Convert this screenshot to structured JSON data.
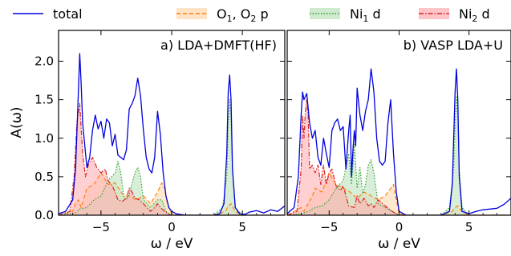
{
  "chart_data": [
    {
      "type": "area",
      "panel_id": "a",
      "title": "a) LDA+DMFT(HF)",
      "xlabel": "ω / eV",
      "ylabel": "A(ω)",
      "xlim": [
        -8,
        8
      ],
      "ylim": [
        0,
        2.4
      ],
      "xticks": [
        -5,
        0,
        5
      ],
      "yticks": [
        0.0,
        0.5,
        1.0,
        1.5,
        2.0
      ],
      "series": [
        {
          "name": "total",
          "style": "solid",
          "color": "#0000dd",
          "filled": false,
          "x": [
            -8.0,
            -7.5,
            -7.0,
            -6.8,
            -6.6,
            -6.5,
            -6.4,
            -6.3,
            -6.0,
            -5.8,
            -5.6,
            -5.4,
            -5.2,
            -5.0,
            -4.8,
            -4.6,
            -4.4,
            -4.2,
            -4.0,
            -3.8,
            -3.6,
            -3.4,
            -3.2,
            -3.0,
            -2.8,
            -2.6,
            -2.4,
            -2.2,
            -2.0,
            -1.8,
            -1.6,
            -1.4,
            -1.2,
            -1.0,
            -0.8,
            -0.6,
            -0.4,
            -0.2,
            0.0,
            0.3,
            0.6,
            1.0,
            2.0,
            3.0,
            3.4,
            3.7,
            3.9,
            4.0,
            4.1,
            4.2,
            4.3,
            4.5,
            4.8,
            5.2,
            5.5,
            6.0,
            6.5,
            7.0,
            7.5,
            8.0
          ],
          "y": [
            0.02,
            0.05,
            0.2,
            0.6,
            1.6,
            2.1,
            1.7,
            1.2,
            0.62,
            0.75,
            1.1,
            1.3,
            1.12,
            1.22,
            1.0,
            1.25,
            1.2,
            0.9,
            1.05,
            0.78,
            0.75,
            0.72,
            0.85,
            1.38,
            1.45,
            1.55,
            1.78,
            1.55,
            1.1,
            0.75,
            0.6,
            0.55,
            0.75,
            1.35,
            1.05,
            0.55,
            0.25,
            0.1,
            0.05,
            0.02,
            0.01,
            0.0,
            0.0,
            0.0,
            0.02,
            0.15,
            0.8,
            1.6,
            1.82,
            1.5,
            0.6,
            0.1,
            0.02,
            0.01,
            0.04,
            0.06,
            0.03,
            0.07,
            0.05,
            0.12
          ]
        },
        {
          "name": "O1, O2 p",
          "style": "dashed",
          "color": "#ff7f0e",
          "filled": true,
          "x": [
            -8.0,
            -7.0,
            -6.8,
            -6.6,
            -6.4,
            -6.2,
            -6.0,
            -5.5,
            -5.0,
            -4.5,
            -4.0,
            -3.5,
            -3.0,
            -2.5,
            -2.0,
            -1.5,
            -1.0,
            -0.7,
            -0.5,
            -0.3,
            0.0,
            0.5,
            3.0,
            3.8,
            4.0,
            4.2,
            4.5,
            5.0,
            8.0
          ],
          "y": [
            0.0,
            0.05,
            0.15,
            0.2,
            0.1,
            0.22,
            0.35,
            0.4,
            0.55,
            0.4,
            0.42,
            0.28,
            0.25,
            0.2,
            0.25,
            0.15,
            0.3,
            0.42,
            0.35,
            0.15,
            0.02,
            0.0,
            0.0,
            0.05,
            0.12,
            0.15,
            0.05,
            0.0,
            0.0
          ]
        },
        {
          "name": "Ni1 d",
          "style": "dotted",
          "color": "#2ca02c",
          "filled": true,
          "x": [
            -8.0,
            -6.8,
            -6.5,
            -6.0,
            -5.5,
            -5.0,
            -4.5,
            -4.0,
            -3.8,
            -3.6,
            -3.4,
            -3.2,
            -3.0,
            -2.6,
            -2.4,
            -2.2,
            -2.0,
            -1.5,
            -1.0,
            -0.7,
            -0.4,
            0.0,
            3.0,
            3.6,
            3.9,
            4.0,
            4.1,
            4.2,
            4.3,
            4.5,
            5.0,
            8.0
          ],
          "y": [
            0.0,
            0.03,
            0.08,
            0.1,
            0.2,
            0.25,
            0.45,
            0.55,
            0.7,
            0.55,
            0.25,
            0.2,
            0.28,
            0.55,
            0.62,
            0.5,
            0.2,
            0.1,
            0.2,
            0.2,
            0.05,
            0.0,
            0.0,
            0.1,
            0.5,
            1.2,
            1.5,
            1.3,
            0.6,
            0.1,
            0.0,
            0.0
          ]
        },
        {
          "name": "Ni2 d",
          "style": "dashdot",
          "color": "#d62728",
          "filled": true,
          "x": [
            -8.0,
            -7.2,
            -6.9,
            -6.7,
            -6.5,
            -6.3,
            -6.1,
            -5.9,
            -5.6,
            -5.3,
            -5.0,
            -4.7,
            -4.5,
            -4.2,
            -4.0,
            -3.8,
            -3.5,
            -3.2,
            -3.0,
            -2.8,
            -2.6,
            -2.3,
            -2.0,
            -1.5,
            -1.2,
            -1.0,
            -0.8,
            -0.5,
            -0.2,
            0.0,
            8.0
          ],
          "y": [
            0.0,
            0.05,
            0.5,
            1.2,
            1.45,
            0.8,
            0.5,
            0.65,
            0.75,
            0.62,
            0.55,
            0.6,
            0.45,
            0.38,
            0.3,
            0.2,
            0.18,
            0.22,
            0.35,
            0.3,
            0.22,
            0.2,
            0.15,
            0.05,
            0.1,
            0.15,
            0.1,
            0.05,
            0.01,
            0.0,
            0.0
          ]
        }
      ]
    },
    {
      "type": "area",
      "panel_id": "b",
      "title": "b) VASP LDA+U",
      "xlabel": "ω / eV",
      "xlim": [
        -8,
        8
      ],
      "ylim": [
        0,
        2.4
      ],
      "xticks": [
        -5,
        0,
        5
      ],
      "series": [
        {
          "name": "total",
          "style": "solid",
          "color": "#0000dd",
          "filled": false,
          "x": [
            -8.0,
            -7.5,
            -7.2,
            -7.0,
            -6.9,
            -6.8,
            -6.6,
            -6.4,
            -6.2,
            -6.0,
            -5.8,
            -5.6,
            -5.4,
            -5.2,
            -5.0,
            -4.8,
            -4.6,
            -4.4,
            -4.2,
            -4.0,
            -3.8,
            -3.6,
            -3.5,
            -3.4,
            -3.3,
            -3.2,
            -3.1,
            -3.0,
            -2.8,
            -2.6,
            -2.4,
            -2.2,
            -2.0,
            -1.8,
            -1.6,
            -1.4,
            -1.2,
            -1.0,
            -0.8,
            -0.6,
            -0.4,
            -0.2,
            0.0,
            0.5,
            1.0,
            3.0,
            3.6,
            3.8,
            4.0,
            4.1,
            4.2,
            4.3,
            4.5,
            5.0,
            5.5,
            6.0,
            6.5,
            7.0,
            7.5,
            8.0
          ],
          "y": [
            0.02,
            0.1,
            0.5,
            1.3,
            1.6,
            1.5,
            1.58,
            1.2,
            1.0,
            1.1,
            0.75,
            0.65,
            1.0,
            0.8,
            0.62,
            1.1,
            1.2,
            1.25,
            1.1,
            1.15,
            0.6,
            1.1,
            1.3,
            0.5,
            0.85,
            1.1,
            0.9,
            1.65,
            1.3,
            1.1,
            1.35,
            1.5,
            1.9,
            1.6,
            1.0,
            0.7,
            0.65,
            0.7,
            1.2,
            1.5,
            0.8,
            0.3,
            0.05,
            0.0,
            0.0,
            0.0,
            0.05,
            0.4,
            1.6,
            1.9,
            1.5,
            0.5,
            0.05,
            0.02,
            0.05,
            0.07,
            0.08,
            0.09,
            0.14,
            0.22
          ]
        },
        {
          "name": "O1, O2 p",
          "style": "dashed",
          "color": "#ff7f0e",
          "filled": true,
          "x": [
            -8.0,
            -7.0,
            -6.8,
            -6.5,
            -6.2,
            -6.0,
            -5.5,
            -5.0,
            -4.5,
            -4.0,
            -3.5,
            -3.0,
            -2.5,
            -2.0,
            -1.5,
            -1.0,
            -0.6,
            -0.4,
            -0.2,
            0.0,
            0.5,
            3.0,
            3.8,
            4.0,
            4.2,
            4.5,
            5.0,
            8.0
          ],
          "y": [
            0.0,
            0.1,
            0.05,
            0.15,
            0.25,
            0.35,
            0.3,
            0.55,
            0.4,
            0.35,
            0.3,
            0.22,
            0.3,
            0.25,
            0.2,
            0.25,
            0.35,
            0.4,
            0.2,
            0.02,
            0.0,
            0.0,
            0.05,
            0.1,
            0.12,
            0.05,
            0.0,
            0.0
          ]
        },
        {
          "name": "Ni1 d",
          "style": "dotted",
          "color": "#2ca02c",
          "filled": true,
          "x": [
            -8.0,
            -7.0,
            -6.5,
            -6.0,
            -5.5,
            -5.0,
            -4.5,
            -4.0,
            -3.6,
            -3.4,
            -3.2,
            -3.0,
            -2.8,
            -2.6,
            -2.4,
            -2.2,
            -2.0,
            -1.8,
            -1.5,
            -1.0,
            -0.5,
            0.0,
            3.0,
            3.6,
            3.9,
            4.0,
            4.1,
            4.2,
            4.3,
            4.5,
            5.0,
            8.0
          ],
          "y": [
            0.0,
            0.02,
            0.05,
            0.1,
            0.12,
            0.2,
            0.35,
            0.45,
            0.8,
            0.4,
            0.92,
            0.35,
            0.62,
            0.28,
            0.4,
            0.65,
            0.72,
            0.55,
            0.15,
            0.1,
            0.05,
            0.0,
            0.0,
            0.1,
            0.6,
            1.2,
            1.55,
            1.3,
            0.6,
            0.1,
            0.0,
            0.0
          ]
        },
        {
          "name": "Ni2 d",
          "style": "dashdot",
          "color": "#d62728",
          "filled": true,
          "x": [
            -8.0,
            -7.3,
            -7.0,
            -6.9,
            -6.8,
            -6.7,
            -6.6,
            -6.5,
            -6.4,
            -6.2,
            -6.0,
            -5.8,
            -5.6,
            -5.4,
            -5.2,
            -5.0,
            -4.8,
            -4.5,
            -4.2,
            -4.0,
            -3.6,
            -3.2,
            -3.0,
            -2.8,
            -2.5,
            -2.2,
            -2.0,
            -1.8,
            -1.5,
            -1.0,
            -0.5,
            0.0,
            8.0
          ],
          "y": [
            0.0,
            0.05,
            0.6,
            1.3,
            1.0,
            1.35,
            1.5,
            1.3,
            0.6,
            0.65,
            0.55,
            0.65,
            0.4,
            0.65,
            0.4,
            0.55,
            0.6,
            0.38,
            0.32,
            0.38,
            0.12,
            0.1,
            0.25,
            0.15,
            0.22,
            0.12,
            0.15,
            0.1,
            0.2,
            0.12,
            0.05,
            0.0,
            0.0
          ]
        }
      ]
    }
  ],
  "legend": {
    "placement": "top",
    "entries": [
      {
        "label": "total",
        "style": "solid",
        "color": "#0000dd",
        "filled": false
      },
      {
        "label": "O",
        "sub1": "1",
        "mid": ", O",
        "sub2": "2",
        "tail": " p",
        "style": "dashed",
        "color": "#ff7f0e",
        "fill": "#ffd9b0",
        "filled": true
      },
      {
        "label": "Ni",
        "sub1": "1",
        "tail": " d",
        "style": "dotted",
        "color": "#2ca02c",
        "fill": "#bfe3bf",
        "filled": true
      },
      {
        "label": "Ni",
        "sub1": "2",
        "tail": " d",
        "style": "dashdot",
        "color": "#d62728",
        "fill": "#ffb0b4",
        "filled": true
      }
    ]
  }
}
